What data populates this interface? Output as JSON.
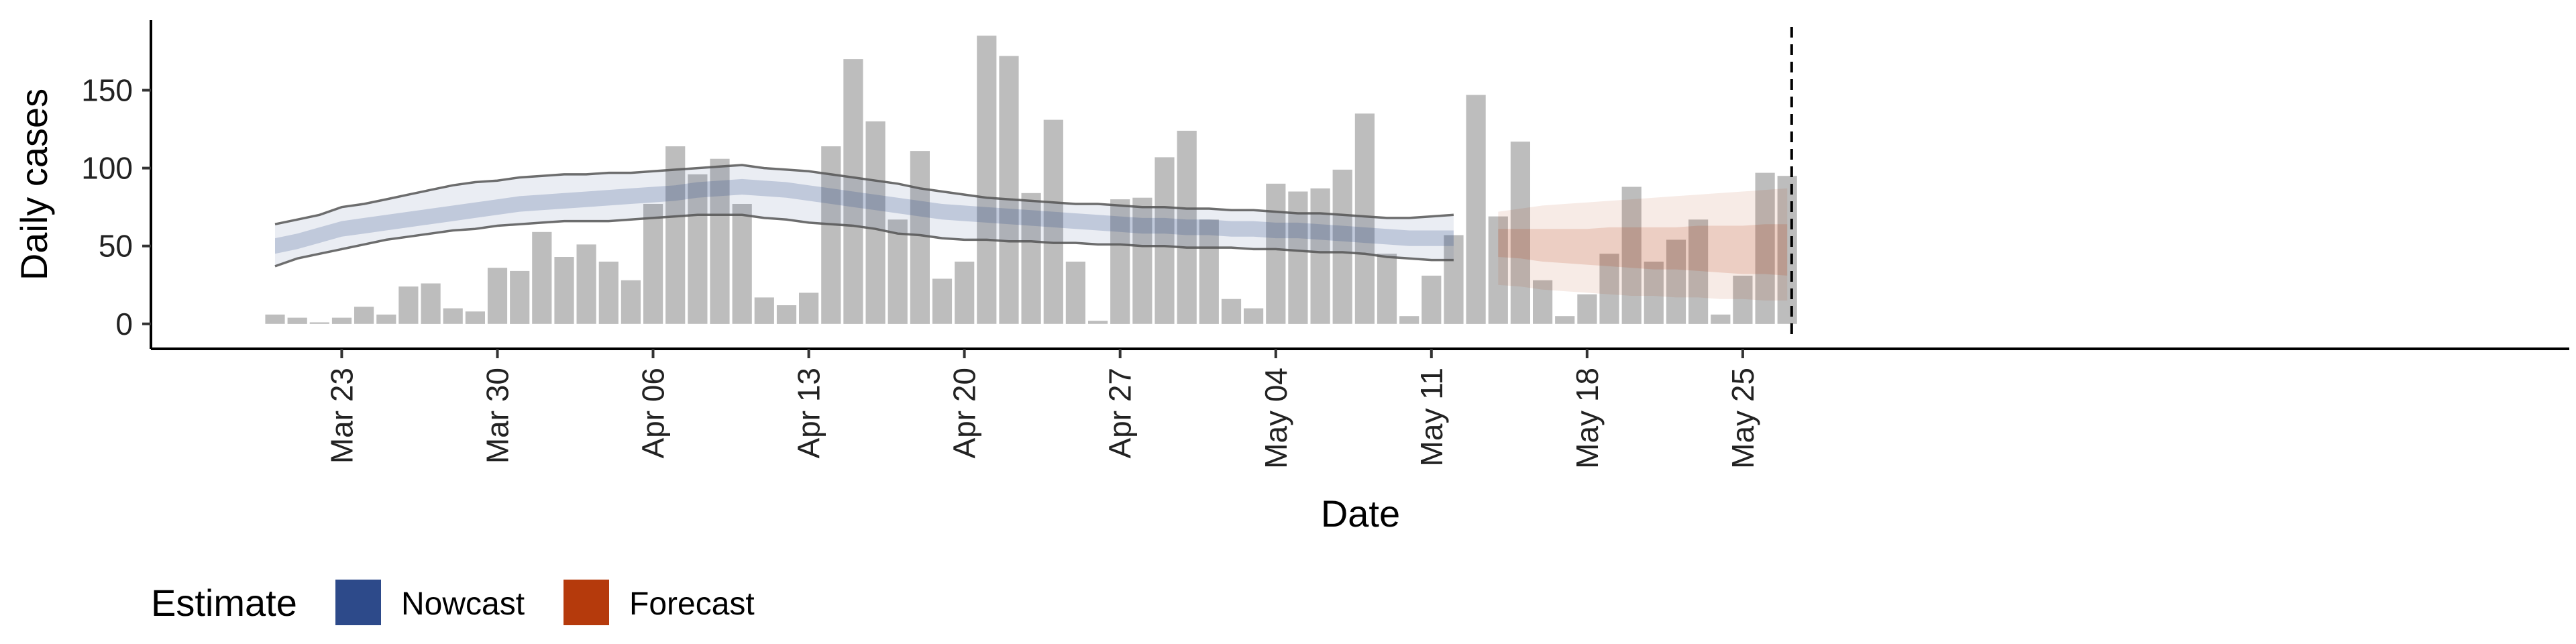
{
  "chart_data": {
    "type": "bar",
    "title": "",
    "xlabel": "Date",
    "ylabel": "Daily cases",
    "ylim": [
      -16,
      195
    ],
    "y_ticks": [
      0,
      50,
      100,
      150
    ],
    "x_start": "Mar 20",
    "x_ticks": [
      "Mar 23",
      "Mar 30",
      "Apr 06",
      "Apr 13",
      "Apr 20",
      "Apr 27",
      "May 04",
      "May 11",
      "May 18",
      "May 25"
    ],
    "x_tick_day_index": [
      3,
      10,
      17,
      24,
      31,
      38,
      45,
      52,
      59,
      66
    ],
    "reference_line_day_index": 68.2,
    "grid": false,
    "legend": {
      "position": "bottom-left",
      "title": "Estimate",
      "items": [
        {
          "label": "Nowcast",
          "color": "#2d4a8a"
        },
        {
          "label": "Forecast",
          "color": "#b53a0c"
        }
      ]
    },
    "bar_color": "#bdbdbd",
    "bar_values": [
      6,
      4,
      1,
      4,
      11,
      6,
      24,
      26,
      10,
      8,
      36,
      34,
      59,
      43,
      51,
      40,
      28,
      77,
      114,
      96,
      106,
      77,
      17,
      12,
      20,
      114,
      170,
      130,
      67,
      111,
      29,
      40,
      185,
      172,
      84,
      131,
      40,
      2,
      80,
      81,
      107,
      124,
      67,
      16,
      10,
      90,
      85,
      87,
      99,
      135,
      45,
      5,
      31,
      57,
      147,
      69,
      117,
      28,
      5,
      19,
      45,
      88,
      40,
      54,
      67,
      6,
      31,
      97,
      95
    ],
    "nowcast": {
      "name": "Nowcast",
      "color": "#2d4a8a",
      "day_start": 0,
      "median": [
        50,
        53,
        57,
        61,
        63,
        65,
        67,
        69,
        71,
        73,
        75,
        77,
        78,
        79,
        80,
        81,
        82,
        83,
        84,
        86,
        87,
        88,
        87,
        86,
        84,
        82,
        80,
        78,
        76,
        74,
        72,
        71,
        70,
        69,
        68,
        67,
        66,
        65,
        64,
        63,
        63,
        62,
        62,
        61,
        61,
        60,
        60,
        59,
        58,
        57,
        56,
        55,
        55,
        55
      ],
      "inner_lower": [
        45,
        48,
        52,
        56,
        58,
        60,
        62,
        64,
        66,
        68,
        70,
        72,
        73,
        74,
        75,
        76,
        77,
        78,
        79,
        81,
        82,
        83,
        82,
        81,
        79,
        77,
        75,
        73,
        71,
        69,
        67,
        66,
        65,
        64,
        63,
        62,
        61,
        60,
        59,
        58,
        58,
        57,
        57,
        56,
        56,
        55,
        55,
        54,
        53,
        52,
        51,
        50,
        50,
        50
      ],
      "inner_upper": [
        55,
        58,
        62,
        66,
        68,
        70,
        72,
        74,
        76,
        78,
        80,
        82,
        83,
        84,
        85,
        86,
        87,
        88,
        89,
        91,
        92,
        93,
        92,
        91,
        89,
        87,
        85,
        83,
        81,
        79,
        77,
        76,
        75,
        74,
        73,
        72,
        71,
        70,
        69,
        68,
        68,
        67,
        67,
        66,
        66,
        65,
        65,
        64,
        63,
        62,
        61,
        60,
        60,
        60
      ],
      "lower": [
        37,
        42,
        45,
        48,
        51,
        54,
        56,
        58,
        60,
        61,
        63,
        64,
        65,
        66,
        66,
        66,
        67,
        68,
        69,
        70,
        70,
        70,
        68,
        67,
        65,
        64,
        63,
        61,
        58,
        57,
        55,
        54,
        54,
        53,
        53,
        52,
        52,
        51,
        51,
        50,
        50,
        49,
        49,
        49,
        48,
        48,
        47,
        46,
        46,
        45,
        43,
        42,
        41,
        41
      ],
      "upper": [
        64,
        67,
        70,
        75,
        77,
        80,
        83,
        86,
        89,
        91,
        92,
        94,
        95,
        96,
        96,
        97,
        97,
        98,
        99,
        100,
        101,
        102,
        100,
        99,
        98,
        96,
        94,
        92,
        90,
        87,
        85,
        83,
        81,
        80,
        79,
        78,
        77,
        77,
        76,
        75,
        75,
        74,
        74,
        73,
        73,
        72,
        71,
        71,
        70,
        69,
        68,
        68,
        69,
        70
      ]
    },
    "forecast": {
      "name": "Forecast",
      "color": "#b53a0c",
      "day_start": 55,
      "median": [
        52,
        51,
        50,
        49,
        49,
        48,
        48,
        48,
        47,
        47,
        47,
        46,
        46,
        46
      ],
      "inner_lower": [
        43,
        42,
        40,
        39,
        38,
        37,
        36,
        35,
        35,
        34,
        33,
        32,
        32,
        31
      ],
      "inner_upper": [
        61,
        61,
        61,
        61,
        61,
        62,
        62,
        62,
        62,
        63,
        63,
        63,
        64,
        64
      ],
      "lower": [
        25,
        24,
        22,
        21,
        20,
        19,
        18,
        18,
        17,
        17,
        16,
        16,
        15,
        15
      ],
      "upper": [
        72,
        74,
        76,
        77,
        78,
        79,
        80,
        81,
        82,
        83,
        84,
        85,
        86,
        87
      ]
    }
  }
}
